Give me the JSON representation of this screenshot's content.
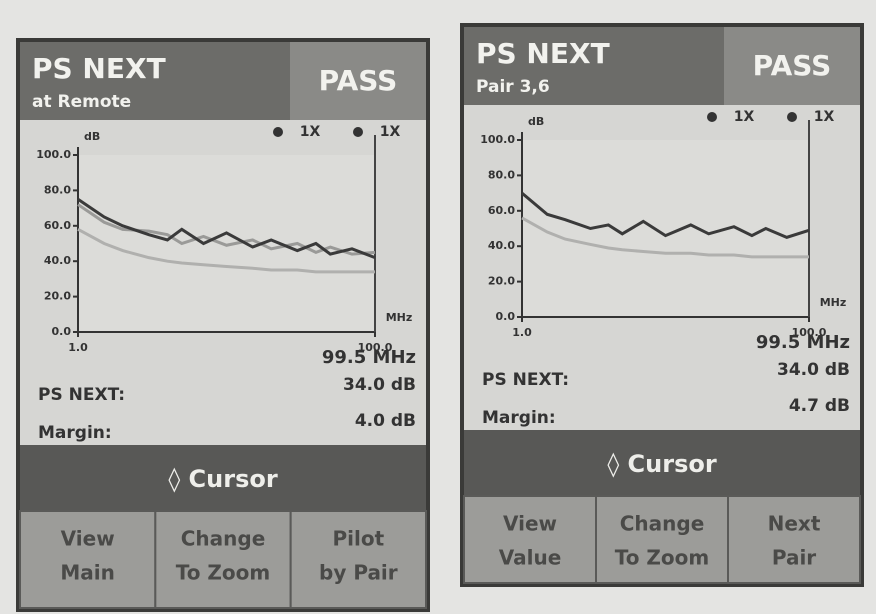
{
  "panels": [
    {
      "title": "PS NEXT",
      "subtitle": "at Remote",
      "status": "PASS",
      "chart_data": {
        "type": "line",
        "y_label": "dB",
        "x_label": "MHz",
        "markers": [
          "1X",
          "1X"
        ],
        "xlog": true,
        "x": [
          1,
          1.5,
          2,
          3,
          4,
          5,
          7,
          10,
          15,
          20,
          30,
          40,
          50,
          70,
          100
        ],
        "xlim": [
          1,
          100
        ],
        "ylim": [
          0,
          100
        ],
        "xticks": [
          {
            "value": 1,
            "label": "1.0"
          },
          {
            "value": 100,
            "label": "100.0"
          }
        ],
        "yticks": [
          {
            "value": 0,
            "label": "0.0"
          },
          {
            "value": 20,
            "label": "20.0"
          },
          {
            "value": 40,
            "label": "40.0"
          },
          {
            "value": 60,
            "label": "60.0"
          },
          {
            "value": 80,
            "label": "80.0"
          },
          {
            "value": 100,
            "label": "100.0"
          }
        ],
        "series": [
          {
            "color": "#9a9a98",
            "values": [
              72,
              62,
              58,
              57,
              55,
              50,
              54,
              49,
              52,
              47,
              50,
              45,
              48,
              44,
              45
            ]
          },
          {
            "color": "#3a3a3a",
            "values": [
              75,
              65,
              60,
              55,
              52,
              58,
              50,
              56,
              48,
              52,
              46,
              50,
              44,
              47,
              42
            ]
          },
          {
            "color": "#b0b0ae",
            "values": [
              58,
              50,
              46,
              42,
              40,
              39,
              38,
              37,
              36,
              35,
              35,
              34,
              34,
              34,
              34
            ]
          }
        ]
      },
      "readout": {
        "frequency": "99.5 MHz",
        "rows": [
          {
            "label": "PS NEXT:",
            "value": "34.0 dB"
          },
          {
            "label": "Margin:",
            "value": "4.0 dB"
          }
        ]
      },
      "cursor": "◊ Cursor",
      "softkeys": [
        [
          "View",
          "Main"
        ],
        [
          "Change",
          "To Zoom"
        ],
        [
          "Pilot",
          "by Pair"
        ]
      ]
    },
    {
      "title": "PS NEXT",
      "subtitle": "Pair 3,6",
      "status": "PASS",
      "chart_data": {
        "type": "line",
        "y_label": "dB",
        "x_label": "MHz",
        "markers": [
          "1X",
          "1X"
        ],
        "xlog": true,
        "x": [
          1,
          1.5,
          2,
          3,
          4,
          5,
          7,
          10,
          15,
          20,
          30,
          40,
          50,
          70,
          100
        ],
        "xlim": [
          1,
          100
        ],
        "ylim": [
          0,
          100
        ],
        "xticks": [
          {
            "value": 1,
            "label": "1.0"
          },
          {
            "value": 100,
            "label": "100.0"
          }
        ],
        "yticks": [
          {
            "value": 0,
            "label": "0.0"
          },
          {
            "value": 20,
            "label": "20.0"
          },
          {
            "value": 40,
            "label": "40.0"
          },
          {
            "value": 60,
            "label": "60.0"
          },
          {
            "value": 80,
            "label": "80.0"
          },
          {
            "value": 100,
            "label": "100.0"
          }
        ],
        "series": [
          {
            "color": "#3a3a3a",
            "values": [
              70,
              58,
              55,
              50,
              52,
              47,
              54,
              46,
              52,
              47,
              51,
              46,
              50,
              45,
              49
            ]
          },
          {
            "color": "#b0b0ae",
            "values": [
              56,
              48,
              44,
              41,
              39,
              38,
              37,
              36,
              36,
              35,
              35,
              34,
              34,
              34,
              34
            ]
          }
        ]
      },
      "readout": {
        "frequency": "99.5 MHz",
        "rows": [
          {
            "label": "PS NEXT:",
            "value": "34.0 dB"
          },
          {
            "label": "Margin:",
            "value": "4.7 dB"
          }
        ]
      },
      "cursor": "◊ Cursor",
      "softkeys": [
        [
          "View",
          "Value"
        ],
        [
          "Change",
          "To Zoom"
        ],
        [
          "Next",
          "Pair"
        ]
      ]
    }
  ]
}
